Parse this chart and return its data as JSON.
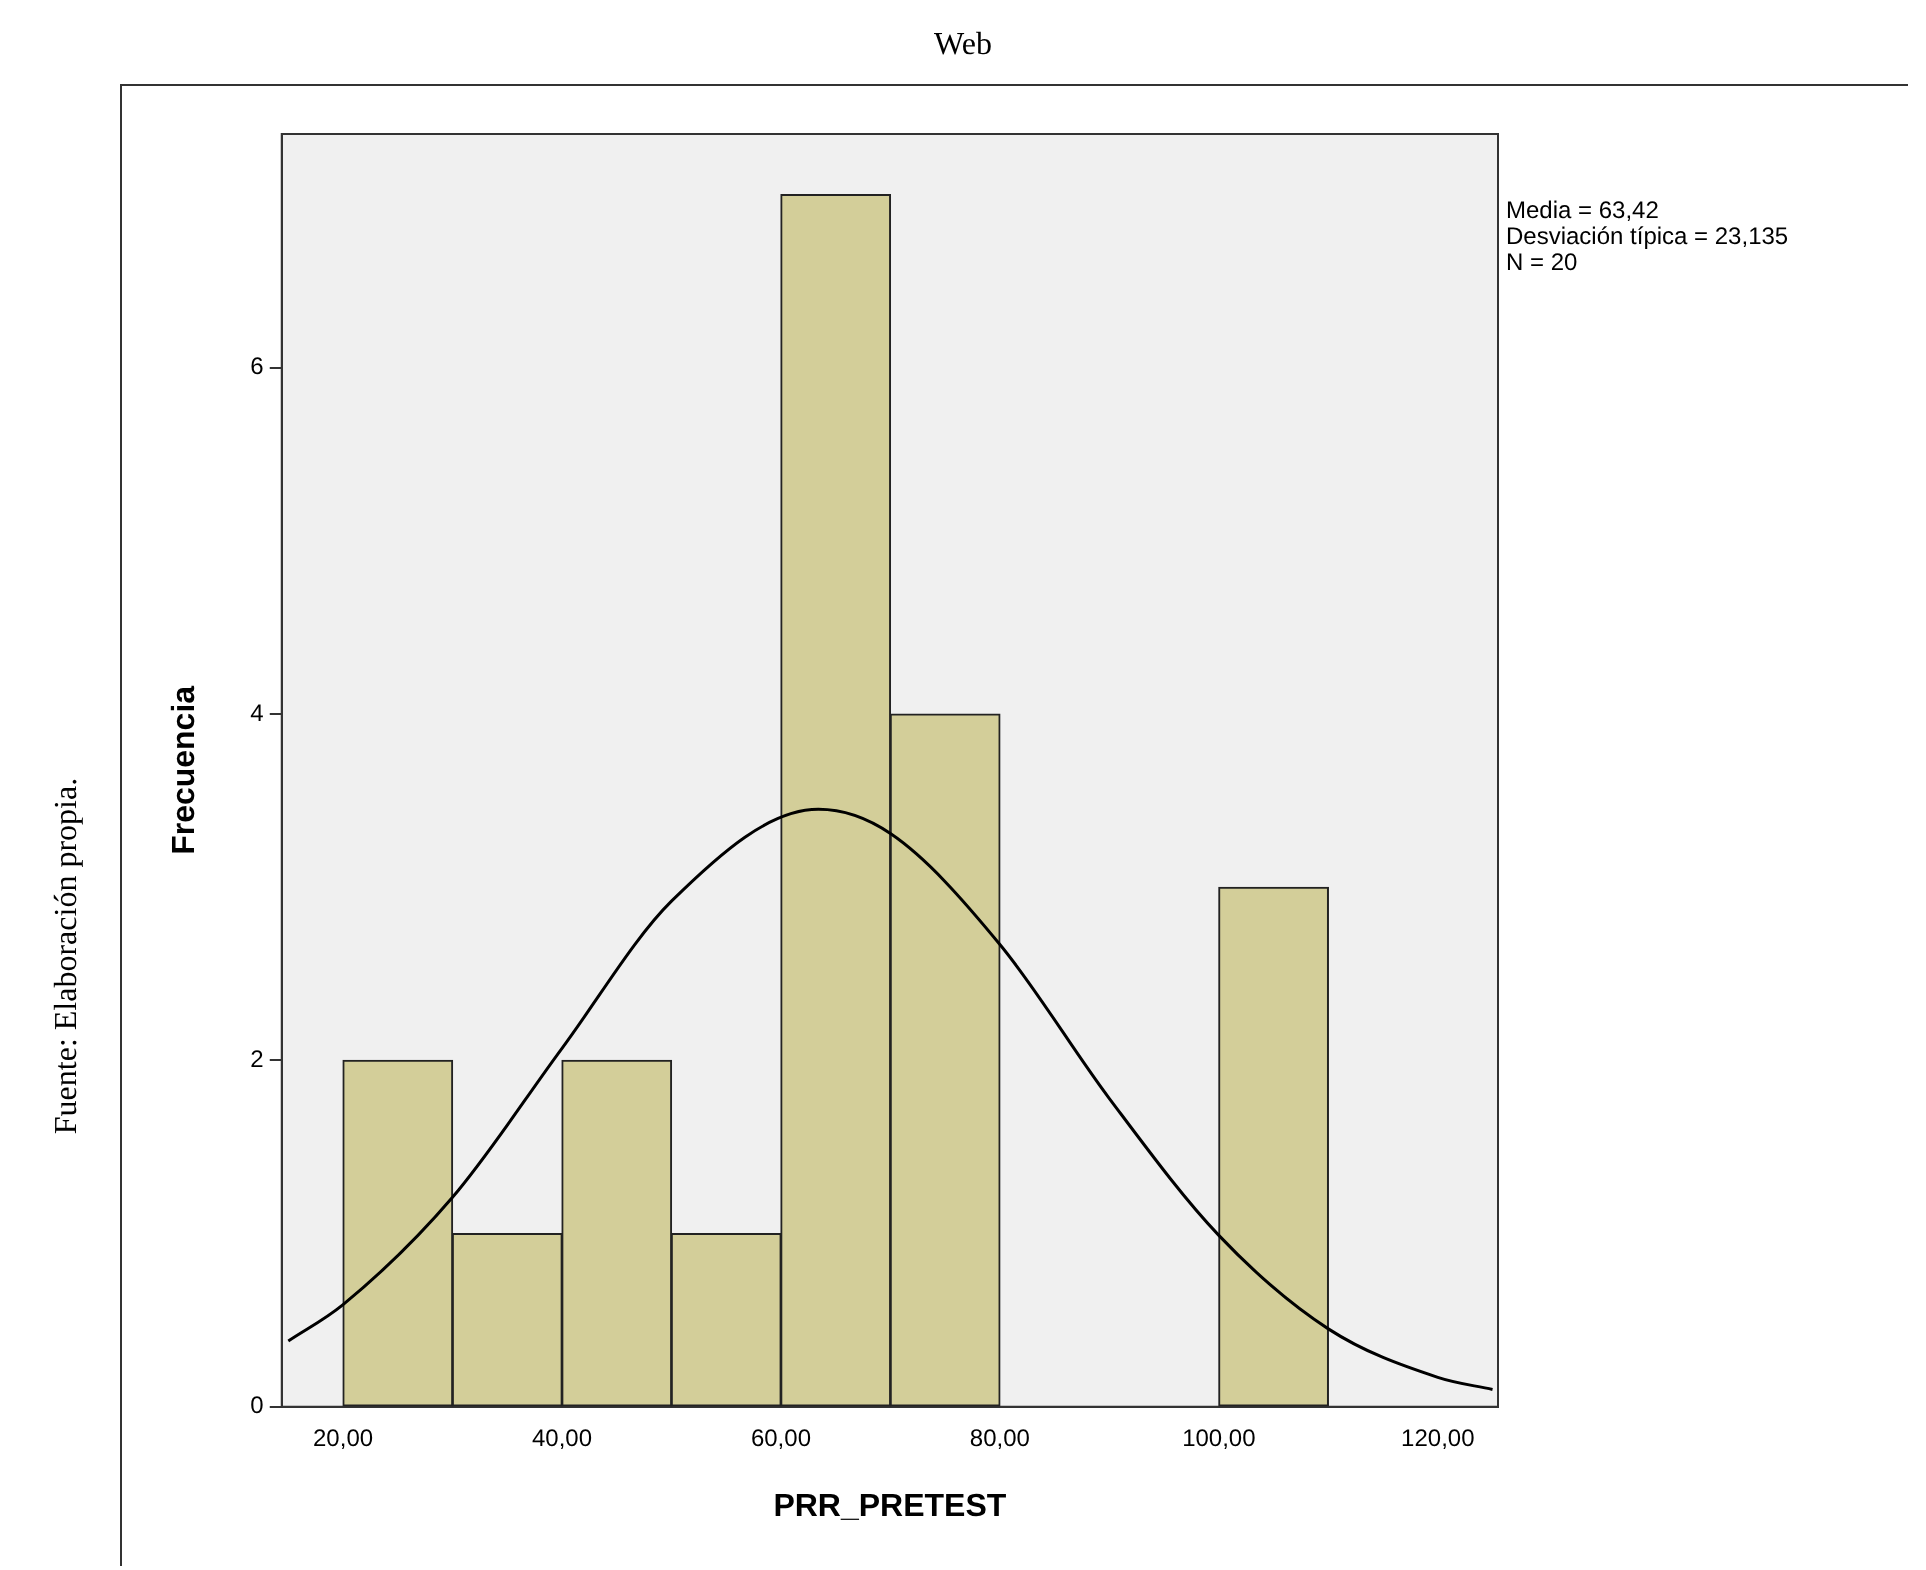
{
  "chart_data": {
    "type": "histogram",
    "title": "Web",
    "xlabel": "PRR_PRETEST",
    "ylabel": "Frecuencia",
    "bins": [
      20,
      30,
      40,
      50,
      60,
      70,
      80,
      90,
      100,
      110
    ],
    "series": [
      {
        "color": "#d3ce99",
        "values": [
          2,
          1,
          2,
          1,
          7,
          4,
          0,
          0,
          3
        ]
      },
      {
        "type": "line",
        "color": "#000000",
        "x": [
          15,
          20,
          30,
          40,
          50,
          63.42,
          70,
          80,
          90,
          100,
          110,
          120,
          125
        ],
        "values": [
          0.38,
          0.59,
          1.21,
          2.07,
          2.92,
          3.45,
          3.31,
          2.67,
          1.78,
          0.99,
          0.45,
          0.17,
          0.1
        ]
      }
    ],
    "marker": "none",
    "grid": false,
    "legend": false,
    "xlim": [
      14.4,
      125.5
    ],
    "ylim": [
      0,
      7.35
    ],
    "xticks": [
      {
        "value": 20,
        "label": "20,00"
      },
      {
        "value": 40,
        "label": "40,00"
      },
      {
        "value": 60,
        "label": "60,00"
      },
      {
        "value": 80,
        "label": "80,00"
      },
      {
        "value": 100,
        "label": "100,00"
      },
      {
        "value": 120,
        "label": "120,00"
      }
    ],
    "yticks": [
      0,
      2,
      4,
      6
    ],
    "annotations": [
      "Media = 63,42",
      "Desviación típica = 23,135",
      "N = 20",
      "Fuente: Elaboración propia."
    ]
  }
}
